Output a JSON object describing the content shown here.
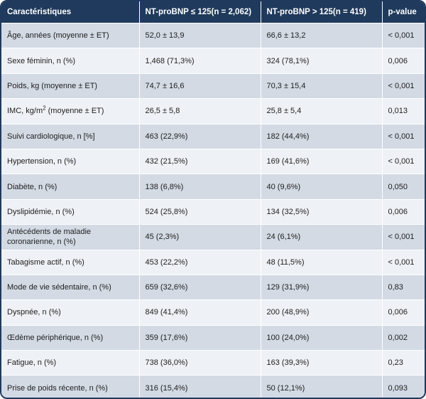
{
  "table": {
    "headers": [
      "Caractéristiques",
      "NT-proBNP ≤ 125(n = 2,062)",
      "NT-proBNP > 125(n = 419)",
      "p-value"
    ],
    "rows": [
      {
        "label": "Âge, années (moyenne ± ET)",
        "low": "52,0 ± 13,9",
        "high": "66,6 ± 13,2",
        "p": "< 0,001"
      },
      {
        "label": "Sexe féminin, n (%)",
        "low": "1,468 (71,3%)",
        "high": "324 (78,1%)",
        "p": "0,006"
      },
      {
        "label": "Poids, kg (moyenne ± ET)",
        "low": "74,7 ± 16,6",
        "high": "70,3 ± 15,4",
        "p": "< 0,001"
      },
      {
        "label_pre": "IMC, kg/m",
        "label_sup": "2",
        "label_post": " (moyenne ± ET)",
        "low": "26,5 ± 5,8",
        "high": "25,8 ± 5,4",
        "p": "0,013"
      },
      {
        "label": "Suivi cardiologique, n [%]",
        "low": "463 (22,9%)",
        "high": "182 (44,4%)",
        "p": "< 0,001"
      },
      {
        "label": "Hypertension, n (%)",
        "low": "432 (21,5%)",
        "high": "169 (41,6%)",
        "p": "< 0,001"
      },
      {
        "label": "Diabète, n (%)",
        "low": "138 (6,8%)",
        "high": "40 (9,6%)",
        "p": "0,050"
      },
      {
        "label": "Dyslipidémie, n (%)",
        "low": "524 (25,8%)",
        "high": "134 (32,5%)",
        "p": "0,006"
      },
      {
        "label": "Antécédents de maladie coronarienne, n (%)",
        "low": "45 (2,3%)",
        "high": "24 (6,1%)",
        "p": "< 0,001"
      },
      {
        "label": "Tabagisme actif, n (%)",
        "low": "453 (22,2%)",
        "high": "48 (11,5%)",
        "p": "< 0,001"
      },
      {
        "label": "Mode de vie sédentaire, n (%)",
        "low": "659 (32,6%)",
        "high": "129 (31,9%)",
        "p": "0,83"
      },
      {
        "label": "Dyspnée, n (%)",
        "low": "849 (41,4%)",
        "high": "200 (48,9%)",
        "p": "0,006"
      },
      {
        "label": "Œdème périphérique, n (%)",
        "low": "359 (17,6%)",
        "high": "100 (24,0%)",
        "p": "0,002"
      },
      {
        "label": "Fatigue, n (%)",
        "low": "738 (36,0%)",
        "high": "163 (39,3%)",
        "p": "0,23"
      },
      {
        "label": "Prise de poids récente, n (%)",
        "low": "316 (15,4%)",
        "high": "50 (12,1%)",
        "p": "0,093"
      }
    ]
  },
  "colors": {
    "header_bg": "#1f3a5c",
    "row_dark": "#d3dae4",
    "row_light": "#eef1f5"
  }
}
